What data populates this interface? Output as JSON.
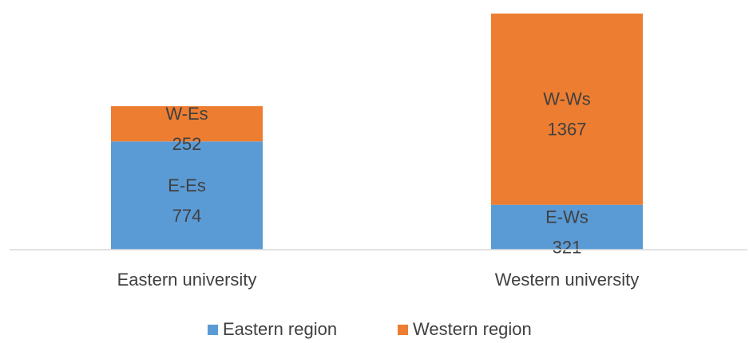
{
  "chart_data": {
    "type": "bar",
    "stacked": true,
    "categories": [
      "Eastern university",
      "Western university"
    ],
    "series": [
      {
        "name": "Eastern region",
        "color": "#5b9bd5",
        "values": [
          774,
          321
        ],
        "labels": [
          "E-Es",
          "E-Ws"
        ]
      },
      {
        "name": "Western region",
        "color": "#ed7d31",
        "values": [
          252,
          1367
        ],
        "labels": [
          "W-Es",
          "W-Ws"
        ]
      }
    ],
    "ylim": [
      0,
      1688
    ],
    "grid": false,
    "legend_position": "bottom",
    "xlabel": "",
    "ylabel": ""
  }
}
